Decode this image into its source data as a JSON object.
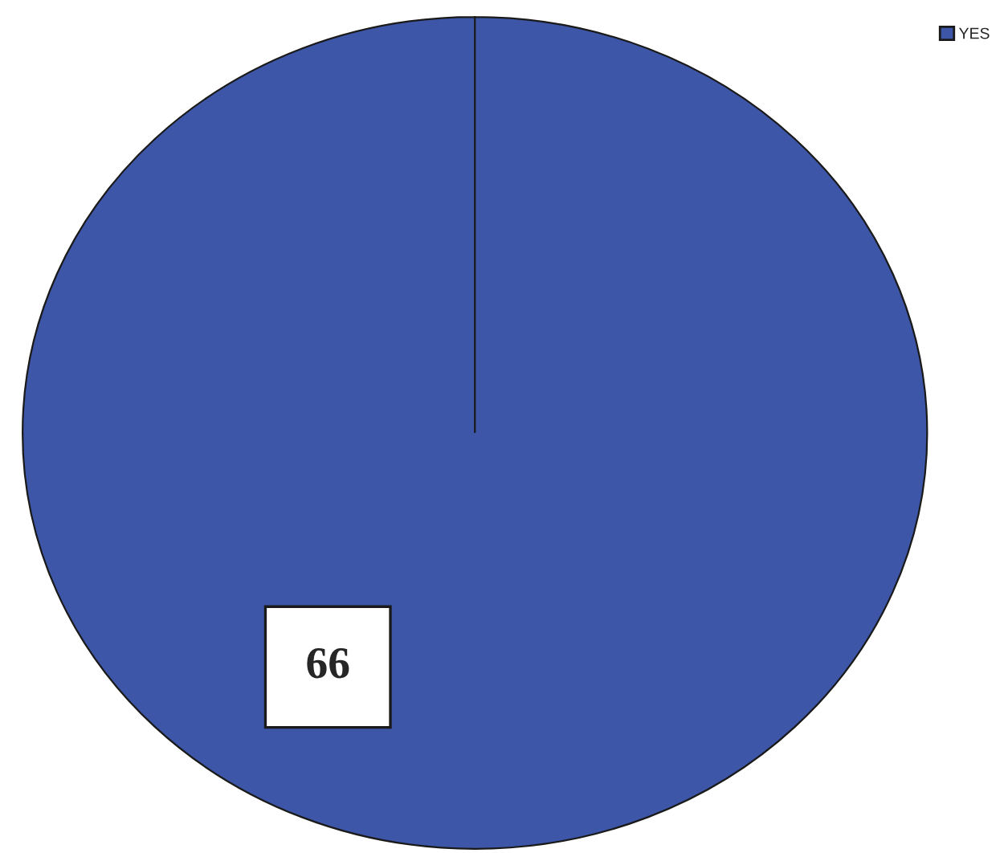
{
  "chart_data": {
    "type": "pie",
    "categories": [
      "YES"
    ],
    "values": [
      66
    ],
    "colors": [
      "#3d56a8"
    ],
    "data_labels": true,
    "legend": "top right"
  }
}
